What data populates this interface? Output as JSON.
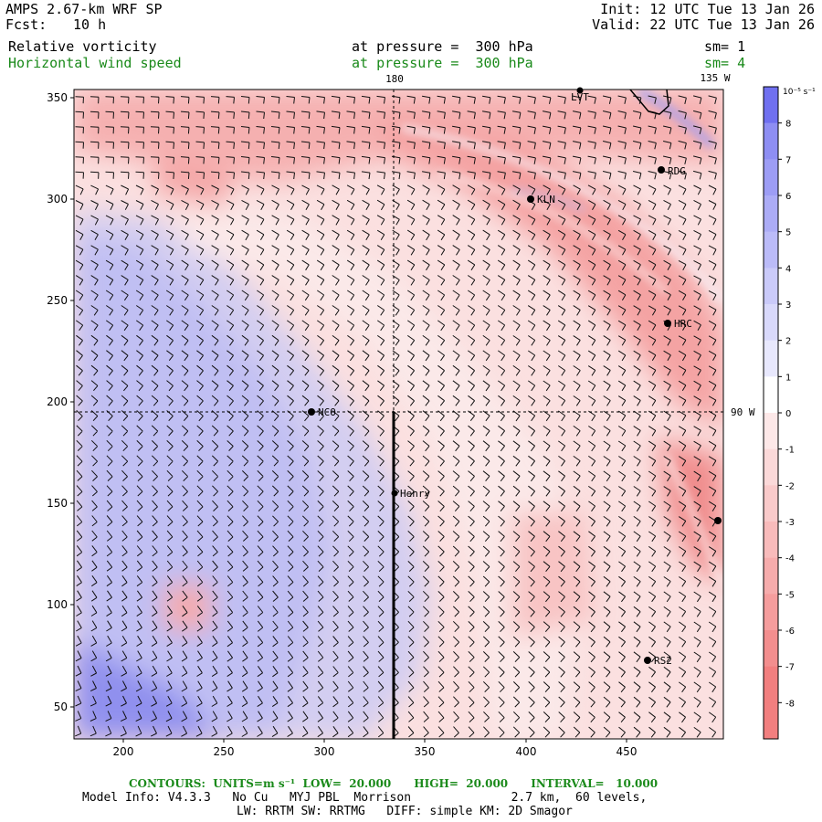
{
  "header": {
    "model": "AMPS 2.67-km WRF SP",
    "fcst_label": "Fcst:",
    "fcst_value": "10 h",
    "init": "Init: 12 UTC Tue 13 Jan 26",
    "valid": "Valid: 22 UTC Tue 13 Jan 26",
    "field1": "Relative vorticity",
    "field1_level": "at pressure =  300 hPa",
    "field1_smooth": "sm= 1",
    "field2": "Horizontal wind speed",
    "field2_level": "at pressure =  300 hPa",
    "field2_smooth": "sm= 4"
  },
  "map": {
    "x_ticks": [
      "200",
      "250",
      "300",
      "350",
      "400",
      "450"
    ],
    "y_ticks": [
      "350",
      "300",
      "250",
      "200",
      "150",
      "100",
      "50"
    ],
    "lon_labels": [
      "180",
      "135 W",
      "90 W"
    ],
    "stations": [
      {
        "name": "LVT"
      },
      {
        "name": "RDG"
      },
      {
        "name": "KLN"
      },
      {
        "name": "HRC"
      },
      {
        "name": "NCO"
      },
      {
        "name": "Henry"
      },
      {
        "name": "RS2"
      },
      {
        "name": ""
      }
    ]
  },
  "colorbar": {
    "units": "10⁻⁵ s⁻¹",
    "labels": [
      "8",
      "7",
      "6",
      "5",
      "4",
      "3",
      "2",
      "1",
      "0",
      "-1",
      "-2",
      "-3",
      "-4",
      "-5",
      "-6",
      "-7",
      "-8"
    ],
    "colors": [
      "#7f7ff2",
      "#8e8ef3",
      "#9d9df5",
      "#acacf6",
      "#bbbbf8",
      "#cacaf9",
      "#d9d9fb",
      "#e8e8fd",
      "#ffffff",
      "#fde8e8",
      "#fbd9d9",
      "#f9caca",
      "#f8bbbb",
      "#f6acac",
      "#f59d9d",
      "#f38e8e",
      "#f27f7f"
    ]
  },
  "footer": {
    "contours": "CONTOURS:  UNITS=m s⁻¹  LOW=  20.000      HIGH=  20.000      INTERVAL=   10.000",
    "model_info": "Model Info: V4.3.3   No Cu   MYJ PBL  Morrison              2.7 km,  60 levels,",
    "physics": "LW: RRTM SW: RRTMG   DIFF: simple KM: 2D Smagor"
  }
}
